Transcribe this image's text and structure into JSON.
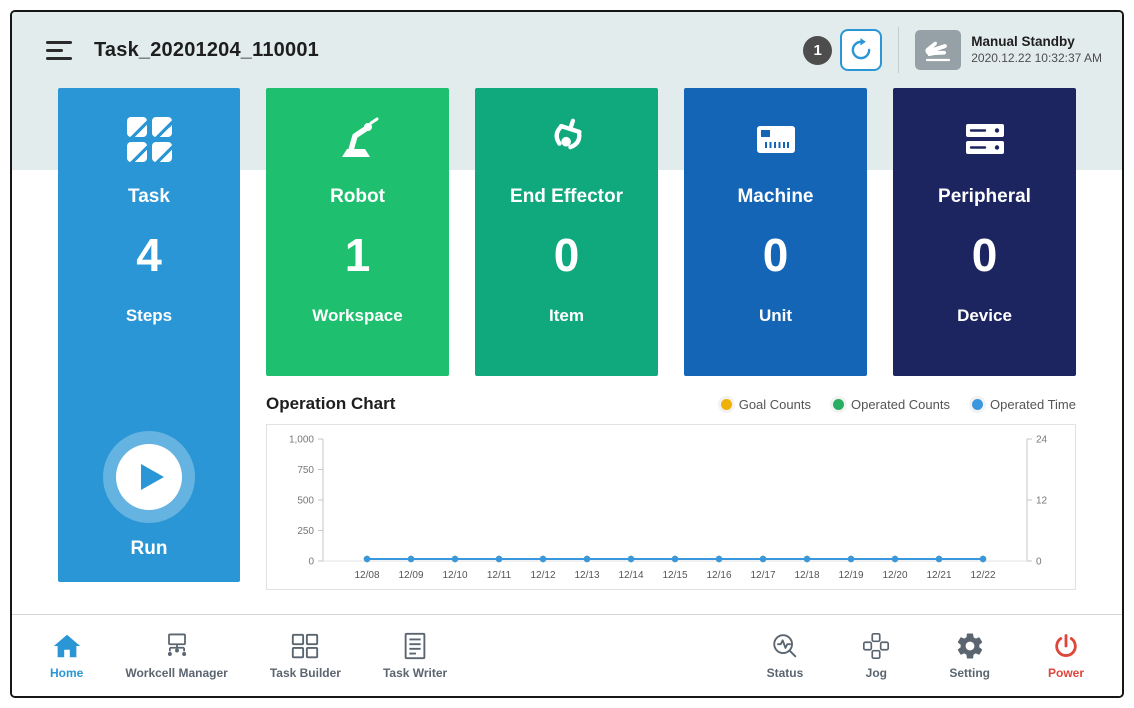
{
  "header": {
    "title": "Task_20201204_110001",
    "badge_count": "1",
    "mode_label": "Manual Standby",
    "timestamp": "2020.12.22 10:32:37 AM"
  },
  "cards": [
    {
      "label": "Task",
      "value": "4",
      "sublabel": "Steps",
      "color": "#2a96d5",
      "run_label": "Run"
    },
    {
      "label": "Robot",
      "value": "1",
      "sublabel": "Workspace",
      "color": "#1ec06f"
    },
    {
      "label": "End Effector",
      "value": "0",
      "sublabel": "Item",
      "color": "#10a87d"
    },
    {
      "label": "Machine",
      "value": "0",
      "sublabel": "Unit",
      "color": "#1565b6"
    },
    {
      "label": "Peripheral",
      "value": "0",
      "sublabel": "Device",
      "color": "#1d2560"
    }
  ],
  "chart_section": {
    "title": "Operation Chart"
  },
  "chart_data": {
    "type": "line",
    "title": "Operation Chart",
    "categories": [
      "12/08",
      "12/09",
      "12/10",
      "12/11",
      "12/12",
      "12/13",
      "12/14",
      "12/15",
      "12/16",
      "12/17",
      "12/18",
      "12/19",
      "12/20",
      "12/21",
      "12/22"
    ],
    "series": [
      {
        "name": "Goal Counts",
        "color": "#efb008",
        "axis": "left",
        "values": [
          0,
          0,
          0,
          0,
          0,
          0,
          0,
          0,
          0,
          0,
          0,
          0,
          0,
          0,
          0
        ]
      },
      {
        "name": "Operated Counts",
        "color": "#27ae60",
        "axis": "left",
        "values": [
          0,
          0,
          0,
          0,
          0,
          0,
          0,
          0,
          0,
          0,
          0,
          0,
          0,
          0,
          0
        ]
      },
      {
        "name": "Operated Time",
        "color": "#3b97dd",
        "axis": "right",
        "values": [
          0,
          0,
          0,
          0,
          0,
          0,
          0,
          0,
          0,
          0,
          0,
          0,
          0,
          0,
          0
        ]
      }
    ],
    "left_axis": {
      "ticks": [
        "1,000",
        "750",
        "500",
        "250",
        "0"
      ],
      "range": [
        0,
        1000
      ]
    },
    "right_axis": {
      "ticks": [
        "24",
        "12",
        "0"
      ],
      "range": [
        0,
        24
      ]
    },
    "grid": false,
    "legend_position": "top-right"
  },
  "nav": [
    {
      "label": "Home",
      "active": true
    },
    {
      "label": "Workcell Manager",
      "active": false
    },
    {
      "label": "Task Builder",
      "active": false
    },
    {
      "label": "Task Writer",
      "active": false
    },
    {
      "label": "Status",
      "active": false
    },
    {
      "label": "Jog",
      "active": false
    },
    {
      "label": "Setting",
      "active": false
    },
    {
      "label": "Power",
      "active": false
    }
  ],
  "icons": {
    "menu-icon": "hamburger-lines",
    "repeat-icon": "circular-arrow",
    "hand-icon": "manual-hand",
    "task-icon": "split-squares-grid",
    "robot-icon": "robot-arm",
    "end-effector-icon": "gripper",
    "machine-icon": "machine-panel",
    "peripheral-icon": "device-stack",
    "play-icon": "play-triangle",
    "home-icon": "house",
    "workcell-manager-icon": "monitor-node-tree",
    "task-builder-icon": "blocks-grid",
    "task-writer-icon": "document-lines",
    "status-icon": "pulse-magnifier",
    "jog-icon": "d-pad",
    "setting-icon": "gear",
    "power-icon": "power-symbol"
  }
}
